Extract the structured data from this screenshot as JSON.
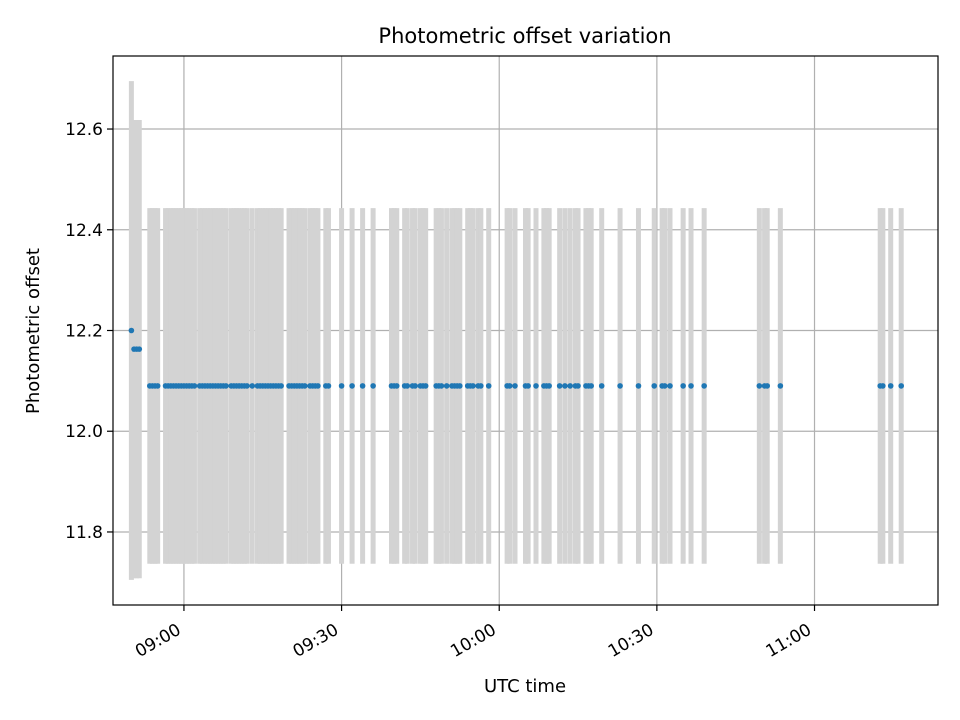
{
  "chart_data": {
    "type": "scatter",
    "title": "Photometric offset variation",
    "xlabel": "UTC time",
    "ylabel": "Photometric offset",
    "x_ticks": [
      "09:00",
      "09:30",
      "10:00",
      "10:30",
      "11:00"
    ],
    "y_ticks": [
      "11.8",
      "12.0",
      "12.2",
      "12.4",
      "12.6"
    ],
    "xlim": [
      "08:46:30",
      "11:23:30"
    ],
    "ylim": [
      11.655,
      12.745
    ],
    "grid": true,
    "marker_color": "#1f77b4",
    "errorbar_color": "#d3d3d3",
    "series": [
      {
        "x": [
          "08:53:30",
          "08:54:00",
          "08:54:30",
          "08:55:00",
          "08:56:30",
          "08:57:00",
          "08:57:30",
          "08:58:00",
          "08:58:30",
          "08:59:00",
          "08:59:30",
          "09:00:00",
          "09:00:30",
          "09:01:00",
          "09:01:30",
          "09:02:00",
          "09:03:00",
          "09:03:30",
          "09:04:00",
          "09:04:30",
          "09:05:00",
          "09:05:30",
          "09:06:00",
          "09:06:30",
          "09:07:00",
          "09:07:30",
          "09:08:00",
          "09:09:00",
          "09:09:30",
          "09:10:00",
          "09:10:30",
          "09:11:00",
          "09:11:30",
          "09:12:00",
          "09:13:00",
          "09:14:00",
          "09:14:30",
          "09:15:00",
          "09:15:30",
          "09:16:00",
          "09:16:30",
          "09:17:00",
          "09:17:30",
          "09:18:00",
          "09:18:30",
          "09:20:00",
          "09:20:30",
          "09:21:00",
          "09:21:30",
          "09:22:00",
          "09:22:30",
          "09:23:00",
          "09:24:00",
          "09:24:30",
          "09:25:00",
          "09:25:30",
          "09:27:00",
          "09:27:30",
          "09:30:00",
          "09:32:00",
          "09:34:00",
          "09:36:00",
          "09:39:30",
          "09:40:00",
          "09:40:30",
          "09:42:00",
          "09:42:30",
          "09:43:30",
          "09:44:00",
          "09:45:00",
          "09:45:30",
          "09:46:00",
          "09:48:00",
          "09:48:30",
          "09:49:00",
          "09:50:00",
          "09:51:00",
          "09:51:30",
          "09:52:00",
          "09:52:30",
          "09:54:00",
          "09:54:30",
          "09:55:00",
          "09:56:00",
          "09:56:30",
          "09:58:00",
          "10:01:30",
          "10:02:00",
          "10:03:00",
          "10:05:00",
          "10:05:30",
          "10:07:00",
          "10:08:30",
          "10:09:00",
          "10:09:30",
          "10:11:30",
          "10:12:30",
          "10:13:30",
          "10:14:30",
          "10:15:00",
          "10:16:30",
          "10:17:00",
          "10:17:30",
          "10:19:30",
          "10:23:00",
          "10:26:30",
          "10:29:30",
          "10:31:00",
          "10:31:30",
          "10:32:30",
          "10:35:00",
          "10:36:30",
          "10:39:00",
          "10:49:30",
          "10:50:30",
          "10:51:00",
          "10:53:30",
          "11:12:30",
          "11:13:00",
          "11:14:30",
          "11:16:30"
        ],
        "y": [
          12.09,
          12.09,
          12.09,
          12.09,
          12.09,
          12.09,
          12.09,
          12.09,
          12.09,
          12.09,
          12.09,
          12.09,
          12.09,
          12.09,
          12.09,
          12.09,
          12.09,
          12.09,
          12.09,
          12.09,
          12.09,
          12.09,
          12.09,
          12.09,
          12.09,
          12.09,
          12.09,
          12.09,
          12.09,
          12.09,
          12.09,
          12.09,
          12.09,
          12.09,
          12.09,
          12.09,
          12.09,
          12.09,
          12.09,
          12.09,
          12.09,
          12.09,
          12.09,
          12.09,
          12.09,
          12.09,
          12.09,
          12.09,
          12.09,
          12.09,
          12.09,
          12.09,
          12.09,
          12.09,
          12.09,
          12.09,
          12.09,
          12.09,
          12.09,
          12.09,
          12.09,
          12.09,
          12.09,
          12.09,
          12.09,
          12.09,
          12.09,
          12.09,
          12.09,
          12.09,
          12.09,
          12.09,
          12.09,
          12.09,
          12.09,
          12.09,
          12.09,
          12.09,
          12.09,
          12.09,
          12.09,
          12.09,
          12.09,
          12.09,
          12.09,
          12.09,
          12.09,
          12.09,
          12.09,
          12.09,
          12.09,
          12.09,
          12.09,
          12.09,
          12.09,
          12.09,
          12.09,
          12.09,
          12.09,
          12.09,
          12.09,
          12.09,
          12.09,
          12.09,
          12.09,
          12.09,
          12.09,
          12.09,
          12.09,
          12.09,
          12.09,
          12.09,
          12.09,
          12.09,
          12.09,
          12.09,
          12.09,
          12.09,
          12.09,
          12.09,
          12.09
        ],
        "yerr": 0.353
      },
      {
        "x": [
          "08:50:00"
        ],
        "y": [
          12.2
        ],
        "yerr": 0.495
      },
      {
        "x": [
          "08:50:30",
          "08:51:00",
          "08:51:30"
        ],
        "y": [
          12.163,
          12.163,
          12.163
        ],
        "yerr": 0.455
      }
    ]
  }
}
